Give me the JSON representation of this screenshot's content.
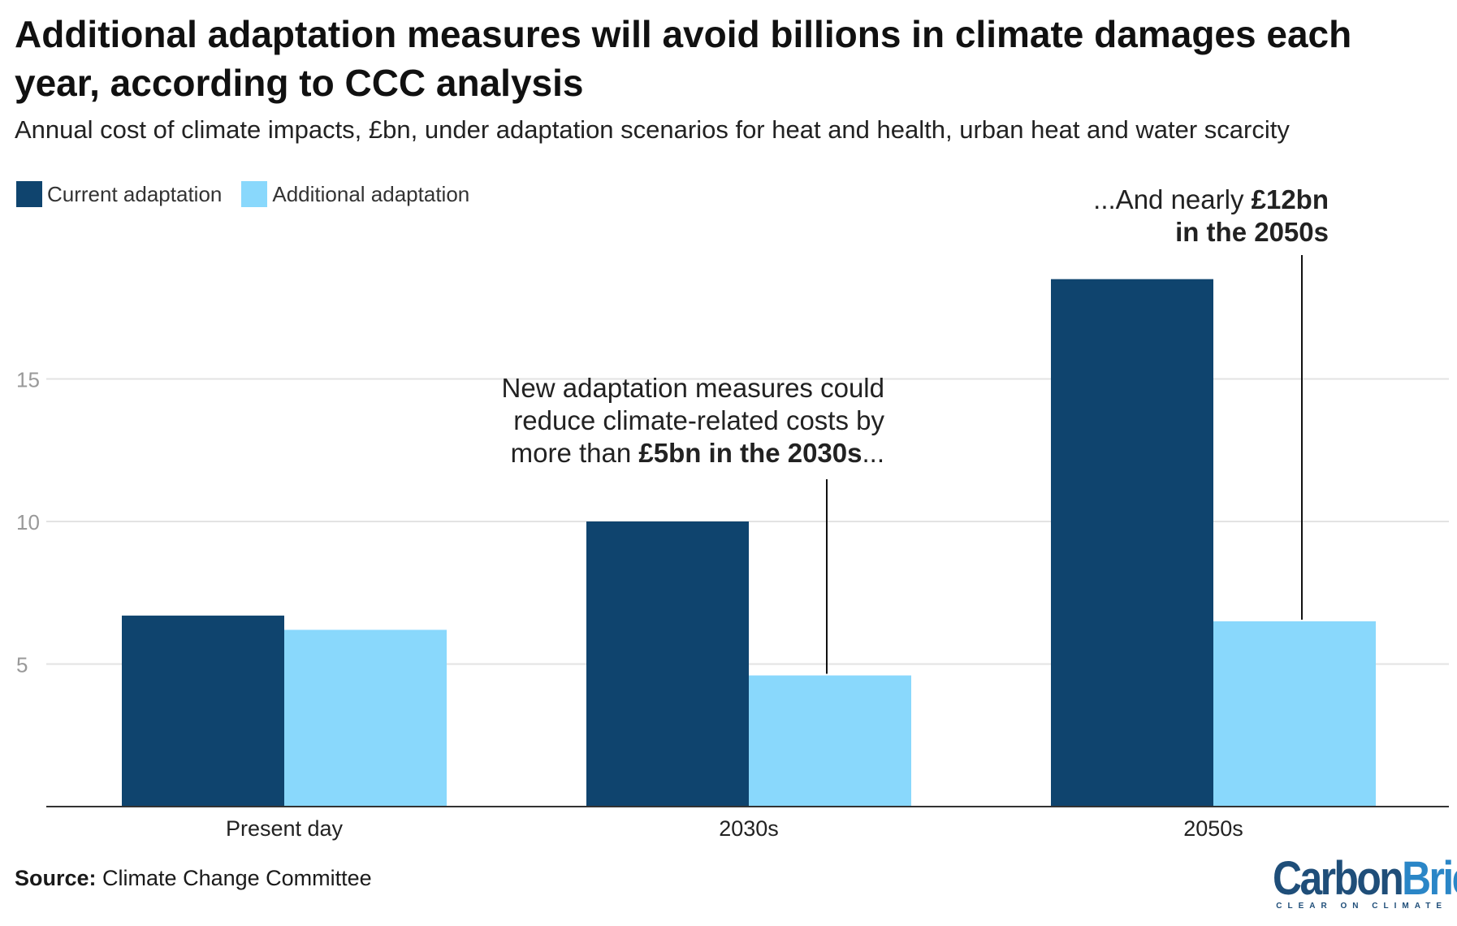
{
  "title": "Additional adaptation measures will avoid billions in climate damages each year, according to CCC analysis",
  "subtitle": "Annual cost of climate impacts, £bn, under adaptation scenarios for heat and health, urban heat and water scarcity",
  "legend": [
    {
      "label": "Current adaptation",
      "color": "#0f446e"
    },
    {
      "label": "Additional adaptation",
      "color": "#89d8fc"
    }
  ],
  "annotations": {
    "a2030": {
      "line1": "New adaptation measures could",
      "line2": "reduce climate-related costs by",
      "line3_pre": "more than ",
      "line3_bold": "£5bn in the 2030s",
      "line3_post": "..."
    },
    "a2050": {
      "line1_pre": "...And nearly ",
      "line1_bold": "£12bn",
      "line2_bold": "in the 2050s"
    }
  },
  "source": {
    "label": "Source:",
    "text": "Climate Change Committee"
  },
  "logo": {
    "part1": "Carbon",
    "part2": "Brief",
    "tagline": "CLEAR ON CLIMATE"
  },
  "chart_data": {
    "type": "bar",
    "categories": [
      "Present day",
      "2030s",
      "2050s"
    ],
    "series": [
      {
        "name": "Current adaptation",
        "values": [
          6.7,
          10.0,
          18.5
        ],
        "color": "#0f446e"
      },
      {
        "name": "Additional adaptation",
        "values": [
          6.2,
          4.6,
          6.5
        ],
        "color": "#89d8fc"
      }
    ],
    "yticks": [
      5,
      10,
      15
    ],
    "ylim": [
      0,
      19
    ],
    "grid": true,
    "legend_position": "top-left"
  }
}
